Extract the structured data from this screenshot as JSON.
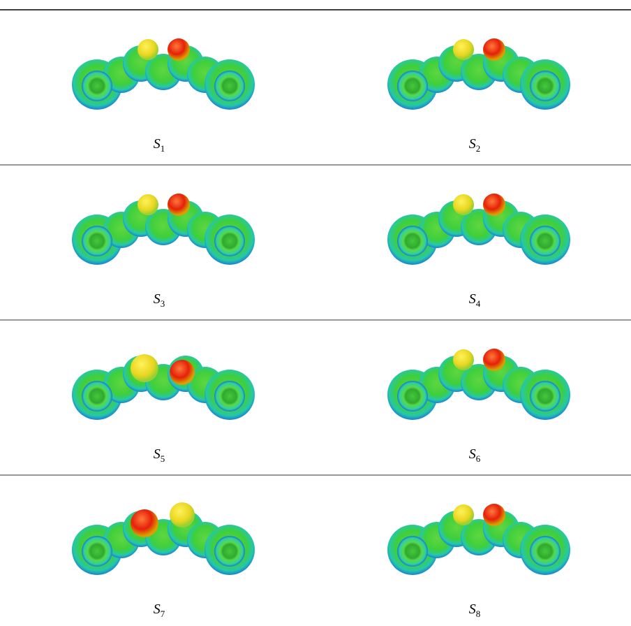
{
  "figure": {
    "panels": [
      {
        "symbol": "S",
        "index": "1"
      },
      {
        "symbol": "S",
        "index": "2"
      },
      {
        "symbol": "S",
        "index": "3"
      },
      {
        "symbol": "S",
        "index": "4"
      },
      {
        "symbol": "S",
        "index": "5"
      },
      {
        "symbol": "S",
        "index": "6"
      },
      {
        "symbol": "S",
        "index": "7"
      },
      {
        "symbol": "S",
        "index": "8"
      }
    ]
  }
}
